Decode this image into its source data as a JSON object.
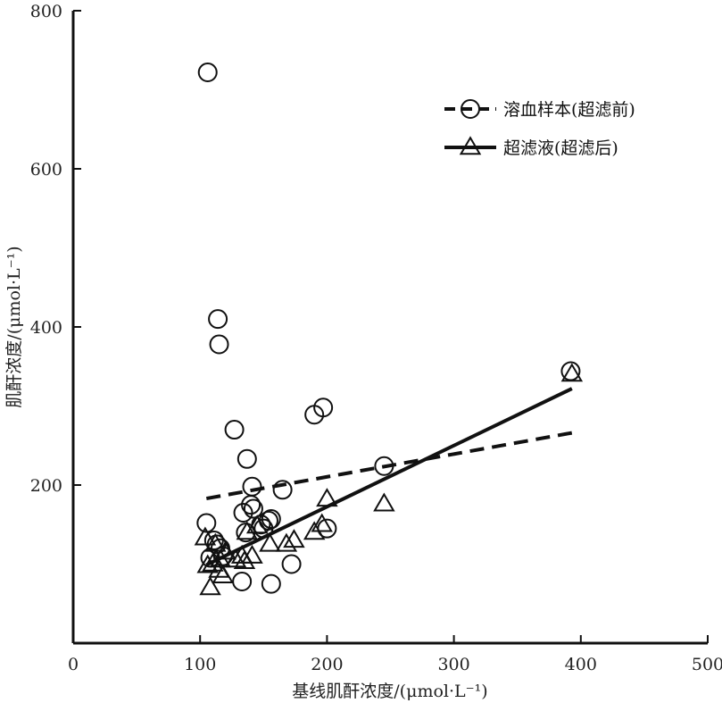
{
  "chart_data": {
    "type": "scatter",
    "xlabel": "基线肌酐浓度/(μmol·L⁻¹)",
    "ylabel": "肌酐浓度/(μmol·L⁻¹)",
    "xlim": [
      0,
      500
    ],
    "ylim": [
      0,
      800
    ],
    "x_ticks": [
      "0",
      "100",
      "200",
      "300",
      "400",
      "500"
    ],
    "y_ticks": [
      "200",
      "400",
      "600",
      "800"
    ],
    "grid": false,
    "legend_position": "top-right",
    "series": [
      {
        "name": "溶血样本(超滤前)",
        "marker": "circle",
        "line_style": "dashed",
        "x": [
          106,
          114,
          115,
          127,
          137,
          141,
          148,
          156,
          165,
          190,
          197,
          105,
          108,
          111,
          113,
          116,
          118,
          134,
          136,
          140,
          142,
          150,
          154,
          200,
          245,
          392,
          133,
          156,
          172
        ],
        "y": [
          722,
          410,
          378,
          270,
          233,
          198,
          150,
          157,
          194,
          289,
          298,
          152,
          108,
          130,
          125,
          120,
          110,
          165,
          140,
          175,
          170,
          145,
          155,
          145,
          224,
          344,
          78,
          75,
          100
        ],
        "trend": {
          "x": [
            105,
            393
          ],
          "y": [
            183,
            266
          ]
        }
      },
      {
        "name": "超滤液(超滤后)",
        "marker": "triangle",
        "line_style": "solid",
        "x": [
          104,
          106,
          108,
          112,
          115,
          118,
          128,
          133,
          135,
          137,
          141,
          145,
          155,
          168,
          174,
          190,
          196,
          200,
          245,
          393,
          110,
          120,
          116
        ],
        "y": [
          133,
          98,
          70,
          125,
          92,
          85,
          105,
          110,
          103,
          140,
          110,
          148,
          125,
          125,
          130,
          140,
          150,
          182,
          176,
          340,
          100,
          115,
          105
        ],
        "trend": {
          "x": [
            105,
            393
          ],
          "y": [
            99,
            322
          ]
        }
      }
    ]
  }
}
